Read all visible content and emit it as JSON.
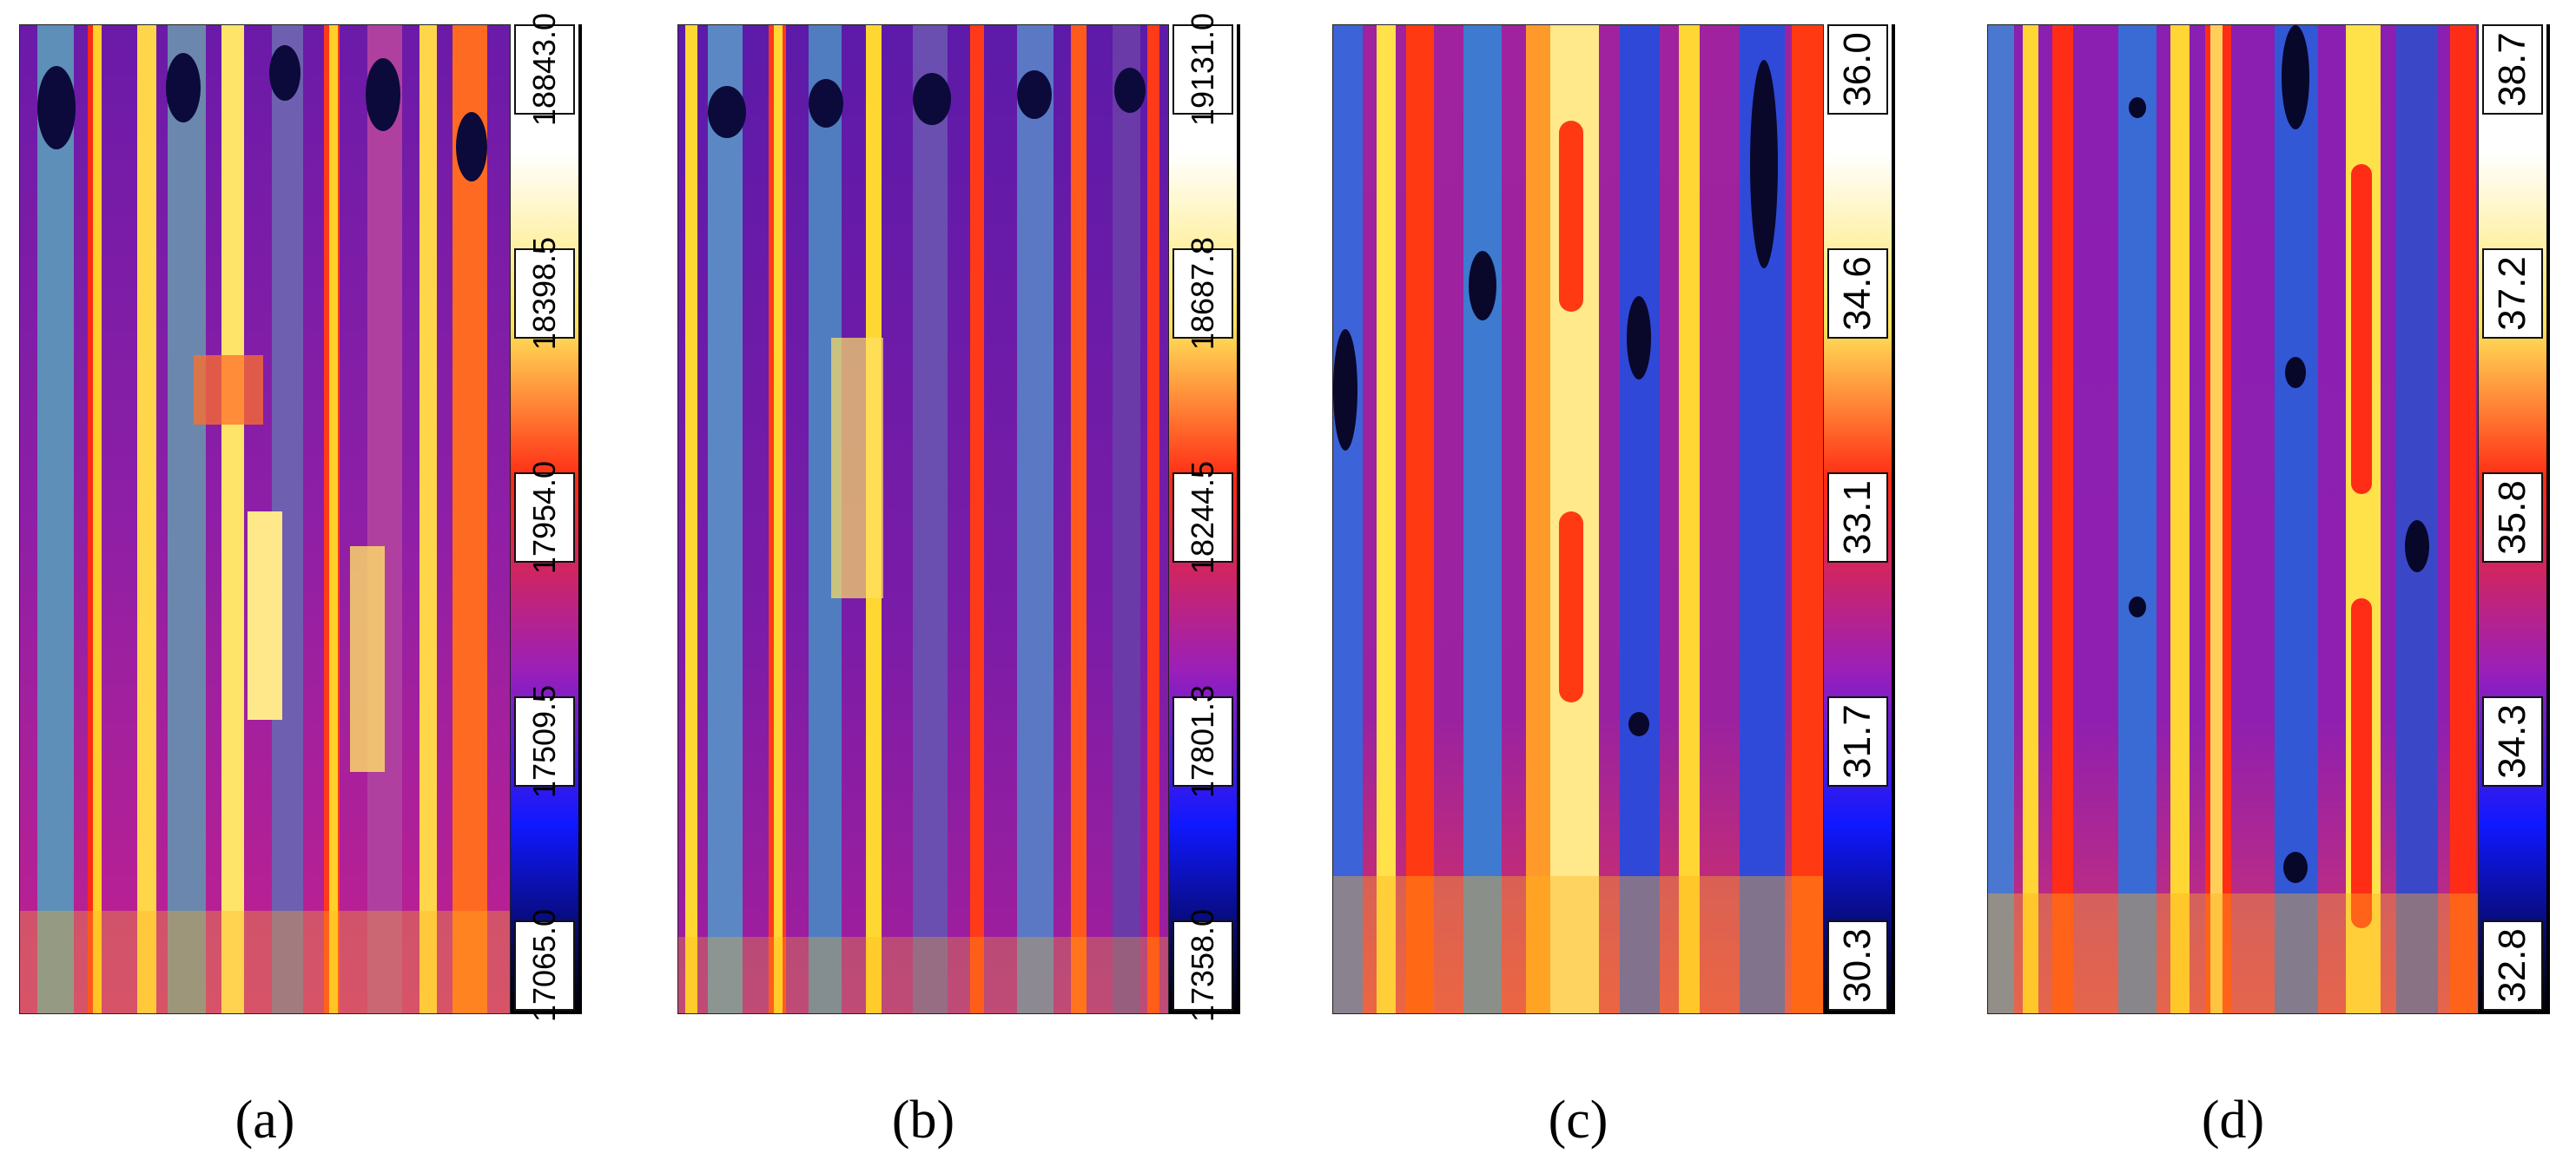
{
  "figure": {
    "panels": [
      {
        "caption": "(a)",
        "scale": [
          "18843.0",
          "18398.5",
          "17954.0",
          "17509.5",
          "17065.0"
        ],
        "palette": {
          "bg": "#8e1fa6",
          "stripe": "#ffcf2a",
          "fill": "#5d8fb8",
          "warm": "#ff2a14",
          "cold": "#0b0a3a"
        }
      },
      {
        "caption": "(b)",
        "scale": [
          "19131.0",
          "18687.8",
          "18244.5",
          "17801.3",
          "17358.0"
        ],
        "palette": {
          "bg": "#7a1ca8",
          "stripe": "#ffd733",
          "fill": "#5b88c4",
          "warm": "#ff3a18",
          "cold": "#0b0a3a"
        }
      },
      {
        "caption": "(c)",
        "scale": [
          "36.0",
          "34.6",
          "33.1",
          "31.7",
          "30.3"
        ],
        "palette": {
          "bg": "#9a22a0",
          "stripe": "#ffe14a",
          "fill": "#3d63d9",
          "warm": "#ff3a12",
          "cold": "#09082a"
        }
      },
      {
        "caption": "(d)",
        "scale": [
          "38.7",
          "37.2",
          "35.8",
          "34.3",
          "32.8"
        ],
        "palette": {
          "bg": "#8f1fb0",
          "stripe": "#ffd633",
          "fill": "#3258d6",
          "warm": "#ff2d16",
          "cold": "#07072a"
        }
      }
    ]
  }
}
